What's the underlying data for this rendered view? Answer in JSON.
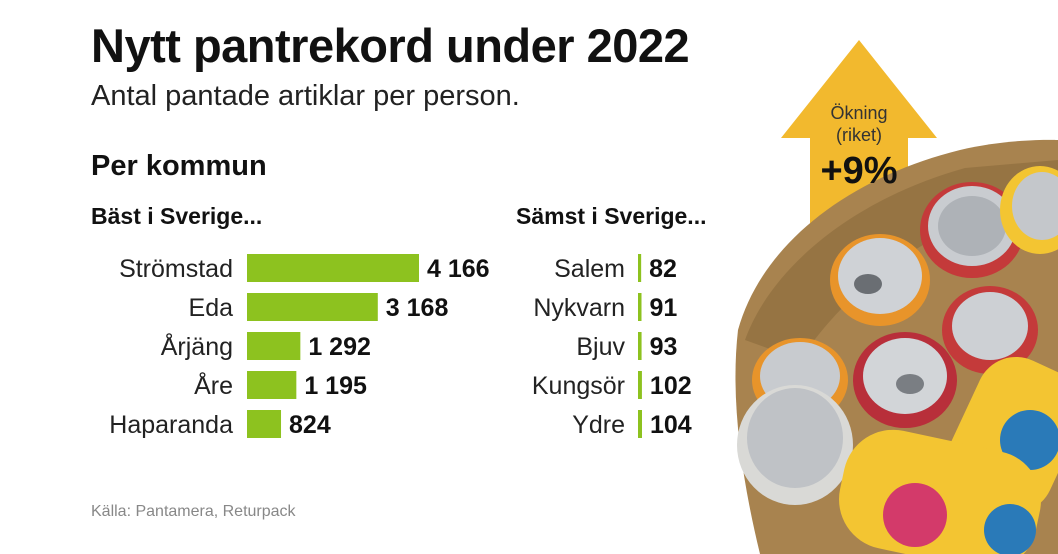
{
  "title": "Nytt pantrekord under 2022",
  "subtitle": "Antal pantade artiklar per person.",
  "section_heading": "Per kommun",
  "source": "Källa: Pantamera, Returpack",
  "increase": {
    "label_line1": "Ökning",
    "label_line2": "(riket)",
    "value": "+9%"
  },
  "colors": {
    "bar": "#8dc21f",
    "arrow": "#f2b92e",
    "bag": "#a8834f"
  },
  "chart_data": [
    {
      "type": "bar",
      "orientation": "horizontal",
      "title": "Bäst i Sverige...",
      "categories": [
        "Strömstad",
        "Eda",
        "Årjäng",
        "Åre",
        "Haparanda"
      ],
      "values": [
        4166,
        3168,
        1292,
        1195,
        824
      ],
      "value_labels": [
        "4 166",
        "3 168",
        "1 292",
        "1 195",
        "824"
      ]
    },
    {
      "type": "bar",
      "orientation": "horizontal",
      "title": "Sämst i Sverige...",
      "categories": [
        "Salem",
        "Nykvarn",
        "Bjuv",
        "Kungsör",
        "Ydre"
      ],
      "values": [
        82,
        91,
        93,
        102,
        104
      ],
      "value_labels": [
        "82",
        "91",
        "93",
        "102",
        "104"
      ]
    }
  ]
}
